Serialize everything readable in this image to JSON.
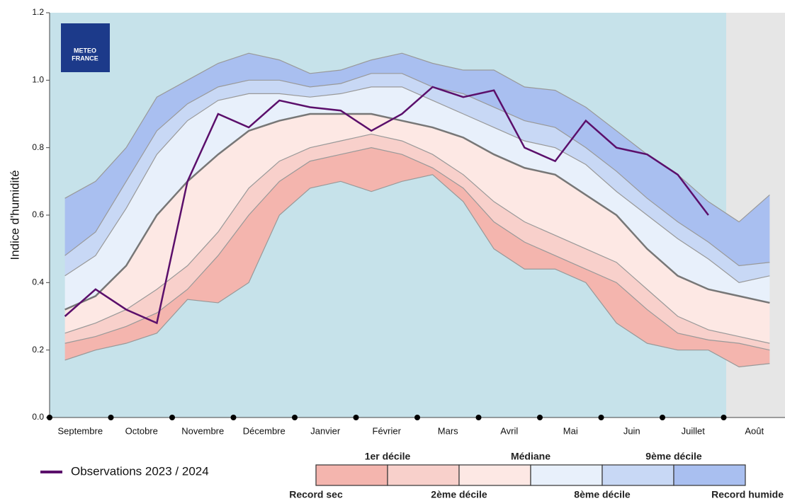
{
  "chart_data": {
    "type": "band",
    "y_label": "Indice d'humidité",
    "logo": [
      "METEO",
      "FRANCE"
    ],
    "categories": [
      "Septembre",
      null,
      "Octobre",
      null,
      "Novembre",
      null,
      "Décembre",
      null,
      "Janvier",
      null,
      "Février",
      null,
      "Mars",
      null,
      "Avril",
      null,
      "Mai",
      null,
      "Juin",
      null,
      "Juillet",
      null,
      "Août",
      null
    ],
    "ylim": [
      0,
      1.2
    ],
    "yticks": [
      {
        "value": 0,
        "label": "0.0"
      },
      0.2,
      0.4,
      0.6,
      0.8,
      {
        "value": 1,
        "label": "1.0"
      },
      1.2
    ],
    "series": [
      {
        "name": "Record sec",
        "color": "#888888",
        "values": [
          0.17,
          0.2,
          0.22,
          0.25,
          0.35,
          0.34,
          0.4,
          0.6,
          0.68,
          0.7,
          0.67,
          0.7,
          0.72,
          0.64,
          0.5,
          0.44,
          0.44,
          0.4,
          0.28,
          0.22,
          0.2,
          0.2,
          0.15,
          0.16
        ]
      },
      {
        "name": "1er décile",
        "color": "#f4b5ae",
        "values": [
          0.22,
          0.24,
          0.27,
          0.31,
          0.38,
          0.48,
          0.6,
          0.7,
          0.76,
          0.78,
          0.8,
          0.78,
          0.74,
          0.68,
          0.58,
          0.52,
          0.48,
          0.44,
          0.4,
          0.32,
          0.25,
          0.23,
          0.22,
          0.2
        ]
      },
      {
        "name": "2ème décile",
        "color": "#f8d0cb",
        "values": [
          0.25,
          0.28,
          0.32,
          0.38,
          0.45,
          0.55,
          0.68,
          0.76,
          0.8,
          0.82,
          0.84,
          0.82,
          0.78,
          0.72,
          0.64,
          0.58,
          0.54,
          0.5,
          0.46,
          0.38,
          0.3,
          0.26,
          0.24,
          0.22
        ]
      },
      {
        "name": "Médiane",
        "color": "#fde8e4",
        "values": [
          0.32,
          0.36,
          0.45,
          0.6,
          0.7,
          0.78,
          0.85,
          0.88,
          0.9,
          0.9,
          0.9,
          0.88,
          0.86,
          0.83,
          0.78,
          0.74,
          0.72,
          0.66,
          0.6,
          0.5,
          0.42,
          0.38,
          0.36,
          0.34
        ]
      },
      {
        "name": "8ème décile",
        "color": "#e8f0fb",
        "values": [
          0.42,
          0.48,
          0.62,
          0.78,
          0.88,
          0.94,
          0.96,
          0.96,
          0.95,
          0.96,
          0.98,
          0.98,
          0.94,
          0.9,
          0.86,
          0.82,
          0.8,
          0.75,
          0.67,
          0.6,
          0.53,
          0.47,
          0.4,
          0.42
        ]
      },
      {
        "name": "9ème décile",
        "color": "#c8d8f5",
        "values": [
          0.48,
          0.55,
          0.7,
          0.85,
          0.93,
          0.98,
          1.0,
          1.0,
          0.98,
          0.99,
          1.02,
          1.02,
          0.98,
          0.96,
          0.92,
          0.88,
          0.86,
          0.8,
          0.73,
          0.65,
          0.58,
          0.52,
          0.45,
          0.46
        ]
      },
      {
        "name": "Record humide",
        "color": "#a9bff0",
        "values": [
          0.65,
          0.7,
          0.8,
          0.95,
          1.0,
          1.05,
          1.08,
          1.06,
          1.02,
          1.03,
          1.06,
          1.08,
          1.05,
          1.03,
          1.03,
          0.98,
          0.97,
          0.92,
          0.85,
          0.78,
          0.72,
          0.64,
          0.58,
          0.66
        ]
      },
      {
        "name": "Observations 2023 / 2024",
        "color": "#5b0f6b",
        "values": [
          0.3,
          0.38,
          0.32,
          0.28,
          0.7,
          0.9,
          0.86,
          0.94,
          0.92,
          0.91,
          0.85,
          0.9,
          0.98,
          0.95,
          0.97,
          0.8,
          0.76,
          0.88,
          0.8,
          0.78,
          0.72,
          0.6,
          null,
          null
        ]
      }
    ]
  }
}
